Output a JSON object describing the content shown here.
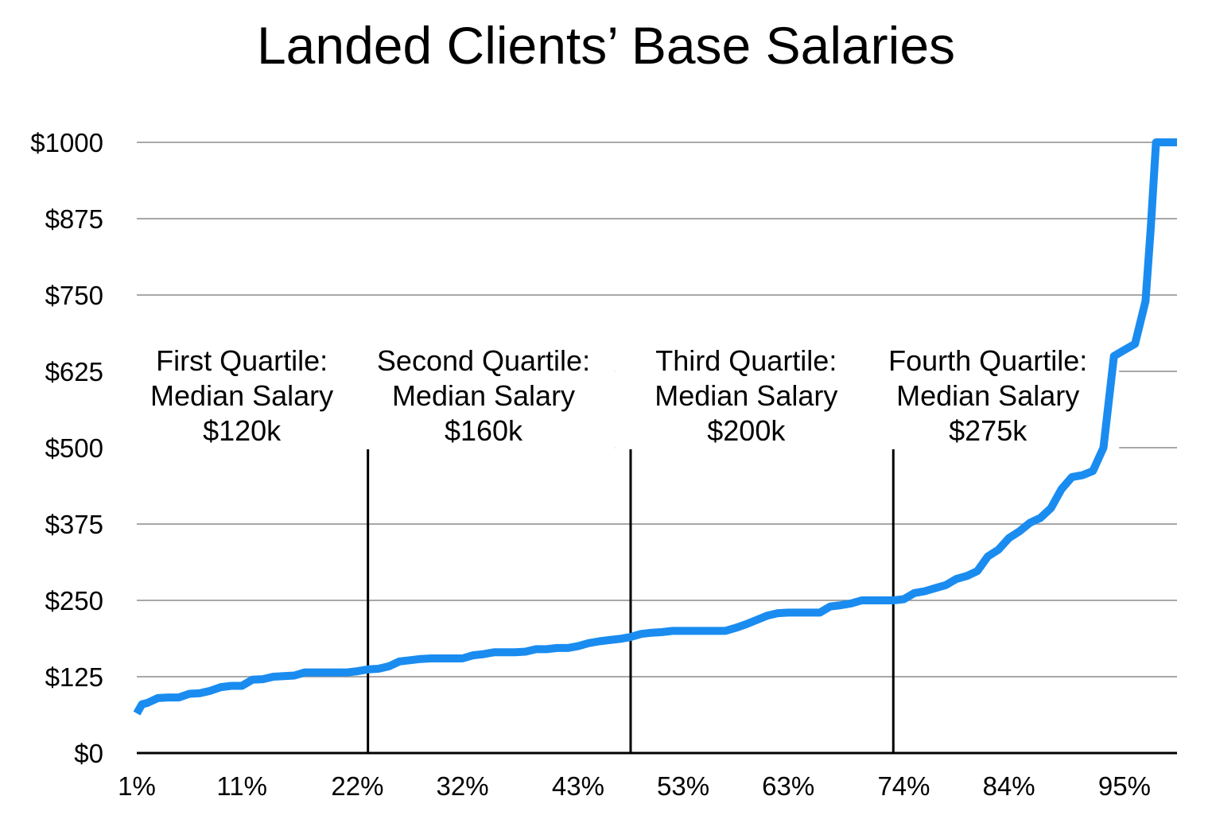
{
  "chart_data": {
    "type": "line",
    "title": "Landed Clients’ Base Salaries",
    "xlabel": "",
    "ylabel": "",
    "ylim": [
      0,
      1000
    ],
    "y_ticks": [
      "$0",
      "$125",
      "$250",
      "$375",
      "$500",
      "$625",
      "$750",
      "$875",
      "$1000"
    ],
    "y_tick_values": [
      0,
      125,
      250,
      375,
      500,
      625,
      750,
      875,
      1000
    ],
    "x_ticks": [
      "1%",
      "11%",
      "22%",
      "32%",
      "43%",
      "53%",
      "63%",
      "74%",
      "84%",
      "95%"
    ],
    "x_tick_values": [
      1,
      11,
      22,
      32,
      43,
      53,
      63,
      74,
      84,
      95
    ],
    "xlim": [
      1,
      100
    ],
    "grid": true,
    "series": [
      {
        "color": "#1a8cf0",
        "x": [
          1,
          1.5,
          2,
          3,
          4,
          5,
          6,
          7,
          8,
          9,
          10,
          11,
          12,
          13,
          14,
          15,
          16,
          17,
          18,
          19,
          20,
          21,
          22,
          23,
          24,
          25,
          26,
          27,
          28,
          29,
          30,
          31,
          32,
          33,
          34,
          35,
          36,
          37,
          38,
          39,
          40,
          41,
          42,
          43,
          44,
          45,
          46,
          47,
          48,
          49,
          50,
          51,
          52,
          53,
          54,
          55,
          56,
          57,
          58,
          59,
          60,
          61,
          62,
          63,
          64,
          65,
          66,
          67,
          68,
          69,
          70,
          71,
          72,
          73,
          74,
          75,
          76,
          77,
          78,
          79,
          80,
          81,
          82,
          83,
          84,
          85,
          86,
          87,
          88,
          89,
          90,
          91,
          92,
          93,
          94,
          95,
          96,
          97,
          97.5,
          98,
          98.5,
          99,
          99.5,
          100
        ],
        "values": [
          65,
          80,
          82,
          90,
          91,
          91,
          97,
          98,
          102,
          108,
          110,
          110,
          120,
          121,
          125,
          126,
          127,
          132,
          132,
          132,
          132,
          132,
          134,
          137,
          138,
          142,
          150,
          152,
          154,
          155,
          155,
          155,
          155,
          160,
          162,
          165,
          165,
          165,
          166,
          170,
          170,
          172,
          172,
          175,
          180,
          183,
          185,
          187,
          190,
          195,
          197,
          198,
          200,
          200,
          200,
          200,
          200,
          200,
          205,
          211,
          218,
          225,
          229,
          230,
          230,
          230,
          230,
          240,
          242,
          245,
          250,
          250,
          250,
          250,
          252,
          262,
          265,
          270,
          275,
          285,
          290,
          298,
          322,
          333,
          352,
          363,
          377,
          385,
          401,
          432,
          452,
          455,
          462,
          500,
          650,
          660,
          670,
          740,
          860,
          1000,
          1000,
          1000,
          1000,
          1000
        ]
      }
    ],
    "annotations": [
      {
        "lines": [
          "First Quartile:",
          "Median Salary",
          "$120k"
        ],
        "x": 11
      },
      {
        "lines": [
          "Second Quartile:",
          "Median Salary",
          "$160k"
        ],
        "x": 34
      },
      {
        "lines": [
          "Third Quartile:",
          "Median Salary",
          "$200k"
        ],
        "x": 59
      },
      {
        "lines": [
          "Fourth Quartile:",
          "Median Salary",
          "$275k"
        ],
        "x": 82
      }
    ],
    "quartile_dividers": [
      {
        "x": 23,
        "top": 535
      },
      {
        "x": 48,
        "top": 535
      },
      {
        "x": 73,
        "top": 485
      }
    ]
  }
}
